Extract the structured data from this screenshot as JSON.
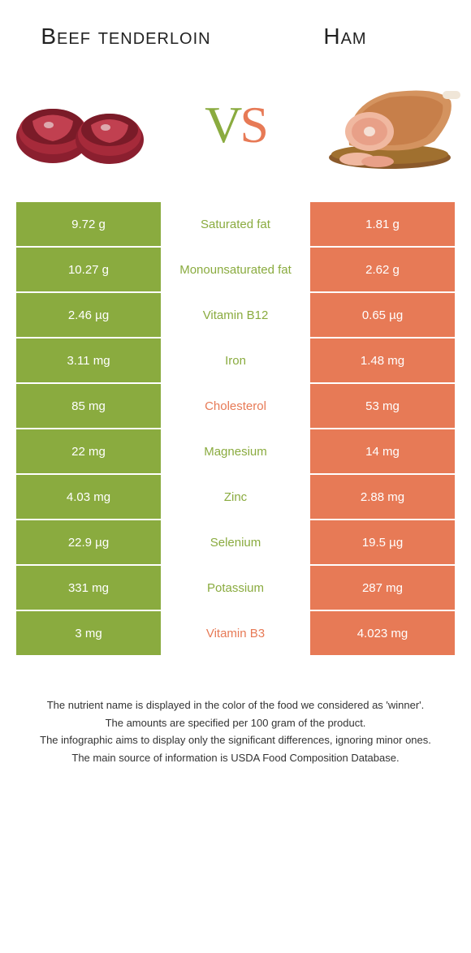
{
  "colors": {
    "left": "#8aab3f",
    "right": "#e77a56",
    "label_left": "#8aab3f",
    "label_right": "#e77a56",
    "text_white": "#ffffff"
  },
  "header": {
    "left_title": "Beef tenderloin",
    "right_title": "Ham"
  },
  "vs": {
    "v": "V",
    "s": "S"
  },
  "rows": [
    {
      "left": "9.72 g",
      "label": "Saturated fat",
      "right": "1.81 g",
      "winner": "left"
    },
    {
      "left": "10.27 g",
      "label": "Monounsaturated fat",
      "right": "2.62 g",
      "winner": "left"
    },
    {
      "left": "2.46 µg",
      "label": "Vitamin B12",
      "right": "0.65 µg",
      "winner": "left"
    },
    {
      "left": "3.11 mg",
      "label": "Iron",
      "right": "1.48 mg",
      "winner": "left"
    },
    {
      "left": "85 mg",
      "label": "Cholesterol",
      "right": "53 mg",
      "winner": "right"
    },
    {
      "left": "22 mg",
      "label": "Magnesium",
      "right": "14 mg",
      "winner": "left"
    },
    {
      "left": "4.03 mg",
      "label": "Zinc",
      "right": "2.88 mg",
      "winner": "left"
    },
    {
      "left": "22.9 µg",
      "label": "Selenium",
      "right": "19.5 µg",
      "winner": "left"
    },
    {
      "left": "331 mg",
      "label": "Potassium",
      "right": "287 mg",
      "winner": "left"
    },
    {
      "left": "3 mg",
      "label": "Vitamin B3",
      "right": "4.023 mg",
      "winner": "right"
    }
  ],
  "footer": {
    "line1": "The nutrient name is displayed in the color of the food we considered as 'winner'.",
    "line2": "The amounts are specified per 100 gram of the product.",
    "line3": "The infographic aims to display only the significant differences, ignoring minor ones.",
    "line4": "The main source of information is USDA Food Composition Database."
  }
}
